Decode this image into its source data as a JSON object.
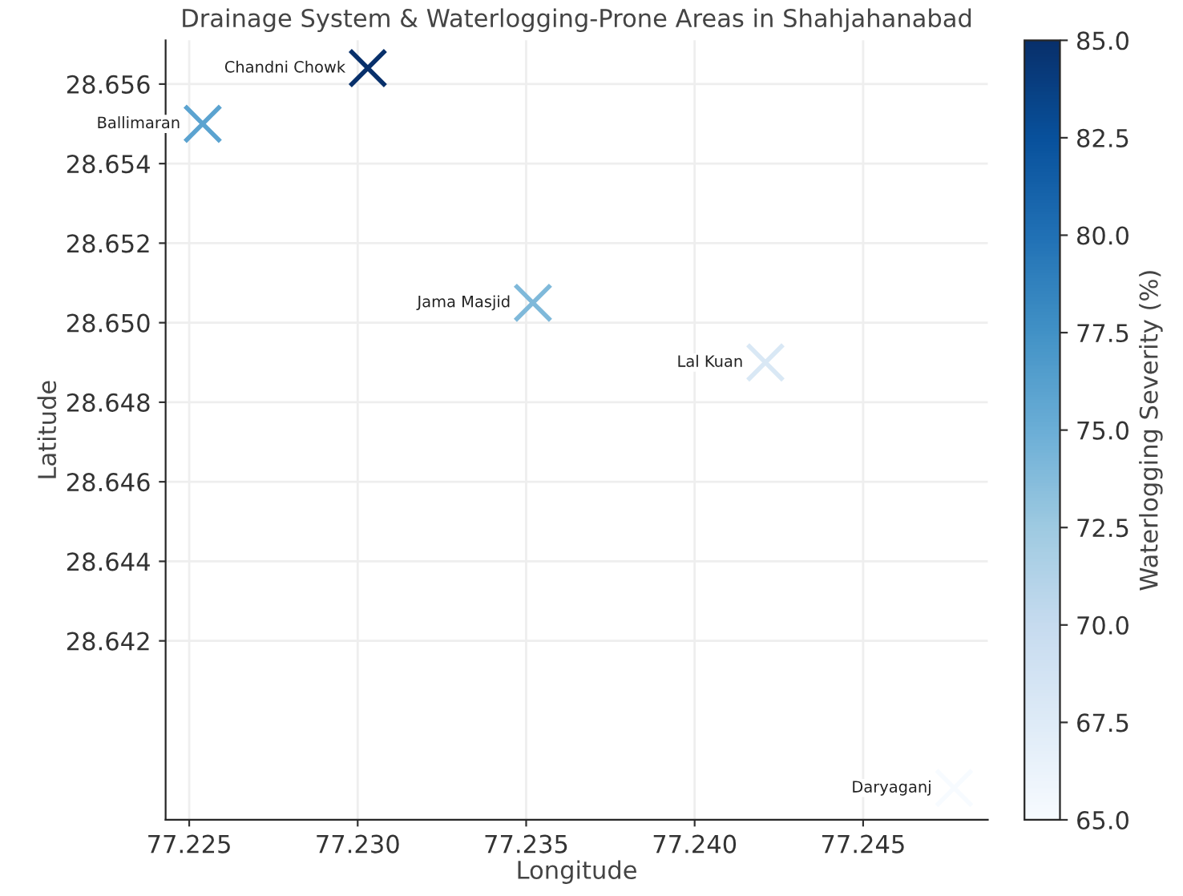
{
  "chart_data": {
    "type": "scatter",
    "title": "Drainage System & Waterlogging-Prone Areas in Shahjahanabad",
    "xlabel": "Longitude",
    "ylabel": "Latitude",
    "clabel": "Waterlogging Severity (%)",
    "x": [
      77.2303,
      77.2254,
      77.2352,
      77.2421,
      77.2477
    ],
    "values": [
      28.6564,
      28.655,
      28.6505,
      28.649,
      28.6383
    ],
    "cvalues": [
      85,
      76,
      74,
      68,
      65
    ],
    "annotations": [
      {
        "text": "Chandni Chowk",
        "x": 77.2303,
        "y": 28.6564
      },
      {
        "text": "Ballimaran",
        "x": 77.2254,
        "y": 28.655
      },
      {
        "text": "Jama Masjid",
        "x": 77.2352,
        "y": 28.6505
      },
      {
        "text": "Lal Kuan",
        "x": 77.2421,
        "y": 28.649
      },
      {
        "text": "Daryaganj",
        "x": 77.2477,
        "y": 28.6383
      }
    ],
    "xlim": [
      77.2243,
      77.2487
    ],
    "ylim": [
      28.6375,
      28.6571
    ],
    "xticks": [
      {
        "value": 77.225,
        "label": "77.225"
      },
      {
        "value": 77.23,
        "label": "77.230"
      },
      {
        "value": 77.235,
        "label": "77.235"
      },
      {
        "value": 77.24,
        "label": "77.240"
      },
      {
        "value": 77.245,
        "label": "77.245"
      }
    ],
    "yticks": [
      {
        "value": 28.642,
        "label": "28.642"
      },
      {
        "value": 28.644,
        "label": "28.644"
      },
      {
        "value": 28.646,
        "label": "28.646"
      },
      {
        "value": 28.648,
        "label": "28.648"
      },
      {
        "value": 28.65,
        "label": "28.650"
      },
      {
        "value": 28.652,
        "label": "28.652"
      },
      {
        "value": 28.654,
        "label": "28.654"
      },
      {
        "value": 28.656,
        "label": "28.656"
      }
    ],
    "clim": [
      65,
      85
    ],
    "cticks": [
      {
        "value": 65,
        "label": "65.0"
      },
      {
        "value": 67.5,
        "label": "67.5"
      },
      {
        "value": 70,
        "label": "70.0"
      },
      {
        "value": 72.5,
        "label": "72.5"
      },
      {
        "value": 75,
        "label": "75.0"
      },
      {
        "value": 77.5,
        "label": "77.5"
      },
      {
        "value": 80,
        "label": "80.0"
      },
      {
        "value": 82.5,
        "label": "82.5"
      },
      {
        "value": 85,
        "label": "85.0"
      }
    ],
    "grid": true,
    "marker": "cross",
    "legend": false
  }
}
